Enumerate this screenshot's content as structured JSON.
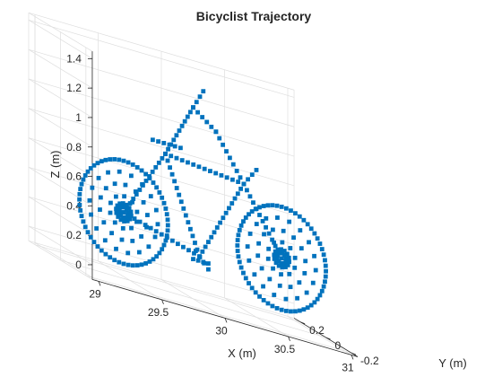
{
  "chart_data": {
    "type": "scatter3d",
    "title": "Bicyclist Trajectory",
    "xlabel": "X (m)",
    "ylabel": "Y (m)",
    "zlabel": "Z (m)",
    "xlim": [
      28.95,
      31.05
    ],
    "ylim": [
      -0.25,
      0.25
    ],
    "zlim": [
      -0.1,
      1.45
    ],
    "xticks": [
      "29",
      "29.5",
      "30",
      "30.5",
      "31"
    ],
    "xtick_values": [
      29,
      29.5,
      30,
      30.5,
      31
    ],
    "yticks": [
      "-0.2",
      "0",
      "0.2"
    ],
    "ytick_values": [
      -0.2,
      0,
      0.2
    ],
    "zticks": [
      "0",
      "0.2",
      "0.4",
      "0.6",
      "0.8",
      "1",
      "1.2",
      "1.4"
    ],
    "ztick_values": [
      0,
      0.2,
      0.4,
      0.6,
      0.8,
      1.0,
      1.2,
      1.4
    ],
    "grid": true,
    "marker_color": "#0072bd",
    "series": [
      {
        "shape": "rings",
        "center": [
          29.45,
          0.0,
          0.35
        ],
        "radii": [
          0.35,
          0.27,
          0.19,
          0.11,
          0.06,
          0.035
        ],
        "counts": [
          60,
          18,
          14,
          10,
          14,
          10
        ]
      },
      {
        "shape": "rings",
        "center": [
          30.7,
          0.0,
          0.35
        ],
        "radii": [
          0.35,
          0.27,
          0.19,
          0.11,
          0.06,
          0.035
        ],
        "counts": [
          60,
          18,
          14,
          10,
          14,
          10
        ]
      },
      {
        "shape": "lines",
        "step": 0.045,
        "segments": [
          [
            [
              29.45,
              0.0,
              0.35
            ],
            [
              30.05,
              0.0,
              0.2
            ]
          ],
          [
            [
              29.45,
              0.0,
              0.35
            ],
            [
              29.78,
              0.0,
              0.83
            ]
          ],
          [
            [
              29.78,
              0.0,
              0.83
            ],
            [
              30.05,
              0.0,
              0.2
            ]
          ],
          [
            [
              30.05,
              0.0,
              0.2
            ],
            [
              30.4,
              0.0,
              0.78
            ]
          ],
          [
            [
              29.78,
              0.0,
              0.83
            ],
            [
              30.4,
              0.0,
              0.78
            ]
          ],
          [
            [
              30.4,
              0.0,
              0.78
            ],
            [
              30.7,
              0.0,
              0.35
            ]
          ],
          [
            [
              30.4,
              0.0,
              0.78
            ],
            [
              30.5,
              0.0,
              0.9
            ]
          ],
          [
            [
              29.78,
              0.0,
              0.83
            ],
            [
              30.0,
              0.0,
              1.2
            ]
          ],
          [
            [
              30.0,
              0.0,
              1.2
            ],
            [
              30.18,
              0.0,
              1.08
            ]
          ],
          [
            [
              30.18,
              0.0,
              1.08
            ],
            [
              30.4,
              0.0,
              0.78
            ]
          ],
          [
            [
              30.0,
              0.0,
              1.2
            ],
            [
              30.08,
              0.0,
              1.33
            ]
          ],
          [
            [
              29.68,
              0.0,
              0.9
            ],
            [
              29.9,
              0.0,
              0.9
            ]
          ],
          [
            [
              30.0,
              0.0,
              0.17
            ],
            [
              30.12,
              0.0,
              0.17
            ]
          ],
          [
            [
              30.02,
              0.0,
              0.23
            ],
            [
              30.12,
              0.0,
              0.13
            ]
          ]
        ]
      }
    ]
  }
}
